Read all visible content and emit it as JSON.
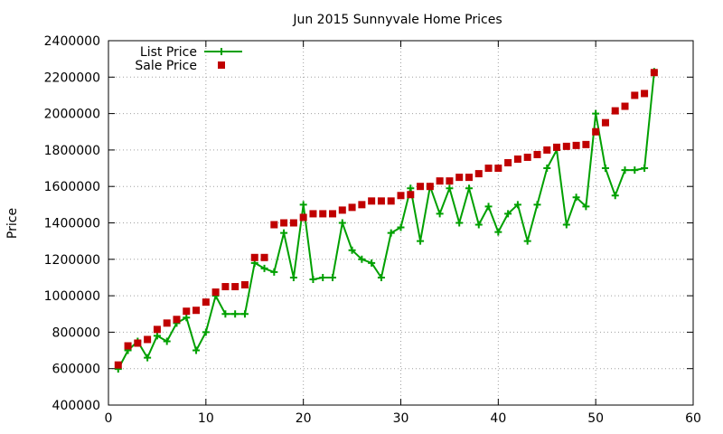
{
  "chart_data": {
    "type": "line",
    "title": "Jun 2015 Sunnyvale Home Prices",
    "xlabel": "",
    "ylabel": "Price",
    "xlim": [
      0,
      60
    ],
    "ylim": [
      400000,
      2400000
    ],
    "xticks": [
      0,
      10,
      20,
      30,
      40,
      50,
      60
    ],
    "yticks": [
      400000,
      600000,
      800000,
      1000000,
      1200000,
      1400000,
      1600000,
      1800000,
      2000000,
      2200000,
      2400000
    ],
    "xtick_labels": [
      "0",
      "10",
      "20",
      "30",
      "40",
      "50",
      "60"
    ],
    "ytick_labels": [
      "400000",
      "600000",
      "800000",
      "1000000",
      "1200000",
      "1400000",
      "1600000",
      "1800000",
      "2000000",
      "2200000",
      "2400000"
    ],
    "grid": true,
    "legend_position": "top-left",
    "series": [
      {
        "name": "List Price",
        "style": "line-with-plus-markers",
        "color": "#00a000",
        "x": [
          1,
          2,
          3,
          4,
          5,
          6,
          7,
          8,
          9,
          10,
          11,
          12,
          13,
          14,
          15,
          16,
          17,
          18,
          19,
          20,
          21,
          22,
          23,
          24,
          25,
          26,
          27,
          28,
          29,
          30,
          31,
          32,
          33,
          34,
          35,
          36,
          37,
          38,
          39,
          40,
          41,
          42,
          43,
          44,
          45,
          46,
          47,
          48,
          49,
          50,
          51,
          52,
          53,
          54,
          55,
          56
        ],
        "values": [
          598000,
          700000,
          750000,
          660000,
          780000,
          750000,
          850000,
          880000,
          700000,
          800000,
          1000000,
          900000,
          900000,
          900000,
          1180000,
          1150000,
          1130000,
          1345000,
          1100000,
          1500000,
          1090000,
          1100000,
          1100000,
          1400000,
          1250000,
          1200000,
          1180000,
          1100000,
          1345000,
          1375000,
          1590000,
          1300000,
          1600000,
          1450000,
          1590000,
          1400000,
          1590000,
          1390000,
          1490000,
          1350000,
          1450000,
          1500000,
          1300000,
          1500000,
          1700000,
          1800000,
          1390000,
          1540000,
          1490000,
          2000000,
          1700000,
          1550000,
          1690000,
          1690000,
          1700000,
          2230000
        ]
      },
      {
        "name": "Sale Price",
        "style": "square-points",
        "color": "#c00000",
        "x": [
          1,
          2,
          3,
          4,
          5,
          6,
          7,
          8,
          9,
          10,
          11,
          12,
          13,
          14,
          15,
          16,
          17,
          18,
          19,
          20,
          21,
          22,
          23,
          24,
          25,
          26,
          27,
          28,
          29,
          30,
          31,
          32,
          33,
          34,
          35,
          36,
          37,
          38,
          39,
          40,
          41,
          42,
          43,
          44,
          45,
          46,
          47,
          48,
          49,
          50,
          51,
          52,
          53,
          54,
          55,
          56
        ],
        "values": [
          620000,
          725000,
          740000,
          760000,
          815000,
          850000,
          870000,
          915000,
          920000,
          965000,
          1020000,
          1050000,
          1050000,
          1060000,
          1210000,
          1210000,
          1390000,
          1400000,
          1400000,
          1430000,
          1450000,
          1450000,
          1450000,
          1470000,
          1485000,
          1500000,
          1520000,
          1520000,
          1520000,
          1550000,
          1555000,
          1600000,
          1600000,
          1630000,
          1630000,
          1650000,
          1650000,
          1670000,
          1700000,
          1700000,
          1730000,
          1750000,
          1760000,
          1775000,
          1800000,
          1815000,
          1820000,
          1825000,
          1830000,
          1900000,
          1950000,
          2015000,
          2040000,
          2100000,
          2110000,
          2225000
        ]
      }
    ]
  }
}
